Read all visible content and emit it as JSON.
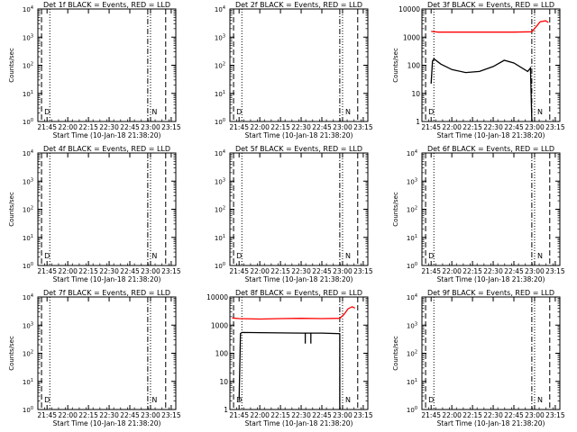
{
  "colors": {
    "events": "#000000",
    "lld": "#ff0000",
    "axis": "#000000"
  },
  "chart_data": [
    {
      "type": "line",
      "title": "Det 1f BLACK = Events, RED = LLD",
      "xlabel": "Start Time (10-Jan-18 21:38:20)",
      "ylabel": "Counts/sec",
      "ylim": [
        1,
        10000
      ],
      "yscale": "log",
      "xticks": [
        "21:45",
        "22:00",
        "22:15",
        "22:30",
        "22:45",
        "23:00",
        "23:15"
      ],
      "ytick_style": "exp",
      "annotations": [
        {
          "text": "D",
          "t": "21:41"
        },
        {
          "text": "N",
          "t": "22:59"
        }
      ],
      "series": []
    },
    {
      "type": "line",
      "title": "Det 2f BLACK = Events, RED = LLD",
      "xlabel": "Start Time (10-Jan-18 21:38:20)",
      "ylabel": "",
      "ylim": [
        1,
        10000
      ],
      "yscale": "log",
      "xticks": [
        "21:45",
        "22:00",
        "22:15",
        "22:30",
        "22:45",
        "23:00",
        "23:15"
      ],
      "ytick_style": "exp",
      "annotations": [
        {
          "text": "D",
          "t": "21:41"
        },
        {
          "text": "N",
          "t": "23:00"
        }
      ],
      "series": []
    },
    {
      "type": "line",
      "title": "Det 3f BLACK = Events, RED = LLD",
      "xlabel": "Start Time (10-Jan-18 21:38:20)",
      "ylabel": "Counts/sec",
      "ylim": [
        1,
        10000
      ],
      "yscale": "log",
      "xticks": [
        "21:45",
        "22:00",
        "22:15",
        "22:30",
        "22:45",
        "23:00",
        "23:15"
      ],
      "ytick_style": "plain",
      "ytick_labels": [
        "1",
        "10",
        "100",
        "1000",
        "10000"
      ],
      "annotations": [
        {
          "text": "D",
          "t": "21:41"
        },
        {
          "text": "N",
          "t": "23:00"
        }
      ],
      "series": [
        {
          "color": "lld",
          "points": [
            [
              "21:45",
              1600
            ],
            [
              "21:50",
              1500
            ],
            [
              "22:00",
              1500
            ],
            [
              "22:15",
              1500
            ],
            [
              "22:30",
              1500
            ],
            [
              "22:45",
              1500
            ],
            [
              "22:58",
              1550
            ],
            [
              "23:01",
              2300
            ],
            [
              "23:04",
              3500
            ],
            [
              "23:08",
              3800
            ],
            [
              "23:10",
              3300
            ]
          ]
        },
        {
          "color": "events",
          "points": [
            [
              "21:45",
              22
            ],
            [
              "21:46",
              140
            ],
            [
              "21:47",
              170
            ],
            [
              "21:52",
              110
            ],
            [
              "22:00",
              70
            ],
            [
              "22:10",
              55
            ],
            [
              "22:20",
              60
            ],
            [
              "22:30",
              90
            ],
            [
              "22:38",
              150
            ],
            [
              "22:45",
              120
            ],
            [
              "22:55",
              60
            ],
            [
              "22:57",
              80
            ],
            [
              "22:58",
              1
            ]
          ]
        }
      ]
    },
    {
      "type": "line",
      "title": "Det 4f BLACK = Events, RED = LLD",
      "xlabel": "Start Time (10-Jan-18 21:38:20)",
      "ylabel": "Counts/sec",
      "ylim": [
        1,
        10000
      ],
      "yscale": "log",
      "xticks": [
        "21:45",
        "22:00",
        "22:15",
        "22:30",
        "22:45",
        "23:00",
        "23:15"
      ],
      "ytick_style": "exp",
      "annotations": [
        {
          "text": "D",
          "t": "21:41"
        },
        {
          "text": "N",
          "t": "22:59"
        }
      ],
      "series": []
    },
    {
      "type": "line",
      "title": "Det 5f BLACK = Events, RED = LLD",
      "xlabel": "Start Time (10-Jan-18 21:38:20)",
      "ylabel": "",
      "ylim": [
        1,
        10000
      ],
      "yscale": "log",
      "xticks": [
        "21:45",
        "22:00",
        "22:15",
        "22:30",
        "22:45",
        "23:00",
        "23:15"
      ],
      "ytick_style": "exp",
      "annotations": [
        {
          "text": "D",
          "t": "21:41"
        },
        {
          "text": "N",
          "t": "23:00"
        }
      ],
      "series": []
    },
    {
      "type": "line",
      "title": "Det 6f BLACK = Events, RED = LLD",
      "xlabel": "Start Time (10-Jan-18 21:38:20)",
      "ylabel": "Counts/sec",
      "ylim": [
        1,
        10000
      ],
      "yscale": "log",
      "xticks": [
        "21:45",
        "22:00",
        "22:15",
        "22:30",
        "22:45",
        "23:00",
        "23:15"
      ],
      "ytick_style": "exp",
      "annotations": [
        {
          "text": "D",
          "t": "21:41"
        },
        {
          "text": "N",
          "t": "23:00"
        }
      ],
      "series": []
    },
    {
      "type": "line",
      "title": "Det 7f BLACK = Events, RED = LLD",
      "xlabel": "Start Time (10-Jan-18 21:38:20)",
      "ylabel": "Counts/sec",
      "ylim": [
        1,
        10000
      ],
      "yscale": "log",
      "xticks": [
        "21:45",
        "22:00",
        "22:15",
        "22:30",
        "22:45",
        "23:00",
        "23:15"
      ],
      "ytick_style": "exp",
      "annotations": [
        {
          "text": "D",
          "t": "21:41"
        },
        {
          "text": "N",
          "t": "22:59"
        }
      ],
      "series": []
    },
    {
      "type": "line",
      "title": "Det 8f BLACK = Events, RED = LLD",
      "xlabel": "Start Time (10-Jan-18 21:38:20)",
      "ylabel": "",
      "ylim": [
        1,
        10000
      ],
      "yscale": "log",
      "xticks": [
        "21:45",
        "22:00",
        "22:15",
        "22:30",
        "22:45",
        "23:00",
        "23:15"
      ],
      "ytick_style": "plain",
      "ytick_labels": [
        "1",
        "10",
        "100",
        "1000",
        "10000"
      ],
      "annotations": [
        {
          "text": "D",
          "t": "21:41"
        },
        {
          "text": "N",
          "t": "23:00"
        }
      ],
      "series": [
        {
          "color": "lld",
          "points": [
            [
              "21:40",
              1800
            ],
            [
              "21:45",
              1700
            ],
            [
              "22:00",
              1650
            ],
            [
              "22:15",
              1700
            ],
            [
              "22:30",
              1750
            ],
            [
              "22:45",
              1700
            ],
            [
              "22:58",
              1750
            ],
            [
              "23:01",
              2400
            ],
            [
              "23:04",
              3800
            ],
            [
              "23:07",
              4500
            ],
            [
              "23:09",
              4000
            ]
          ]
        },
        {
          "color": "events",
          "points": [
            [
              "21:45",
              2
            ],
            [
              "21:46",
              500
            ],
            [
              "21:47",
              550
            ],
            [
              "22:00",
              540
            ],
            [
              "22:15",
              530
            ],
            [
              "22:30",
              520
            ],
            [
              "22:33",
              520
            ],
            [
              "22:33",
              220
            ],
            [
              "22:33",
              520
            ],
            [
              "22:37",
              520
            ],
            [
              "22:37",
              220
            ],
            [
              "22:37",
              520
            ],
            [
              "22:45",
              520
            ],
            [
              "22:58",
              500
            ],
            [
              "22:58",
              1
            ]
          ]
        }
      ]
    },
    {
      "type": "line",
      "title": "Det 9f BLACK = Events, RED = LLD",
      "xlabel": "Start Time (10-Jan-18 21:38:20)",
      "ylabel": "Counts/sec",
      "ylim": [
        1,
        10000
      ],
      "yscale": "log",
      "xticks": [
        "21:45",
        "22:00",
        "22:15",
        "22:30",
        "22:45",
        "23:00",
        "23:15"
      ],
      "ytick_style": "exp",
      "annotations": [
        {
          "text": "D",
          "t": "21:41"
        },
        {
          "text": "N",
          "t": "23:00"
        }
      ],
      "series": []
    }
  ]
}
